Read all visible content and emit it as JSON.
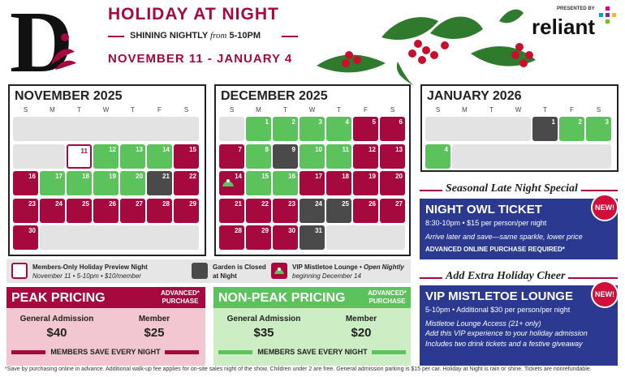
{
  "header": {
    "logo": "D",
    "title": "HOLIDAY AT NIGHT",
    "subtitle": {
      "before": "SHINING NIGHTLY",
      "italic": "from",
      "after": "5-10PM"
    },
    "dates": "NOVEMBER 11 - JANUARY 4",
    "presented_by": "PRESENTED BY",
    "sponsor": "reliant"
  },
  "weekdays": [
    "S",
    "M",
    "T",
    "W",
    "T",
    "F",
    "S"
  ],
  "months": [
    {
      "title": "NOVEMBER 2025",
      "weeks": [
        [
          null,
          null,
          null,
          null,
          null,
          null,
          null
        ],
        [
          null,
          null,
          {
            "day": 11,
            "fill": "#ffffff",
            "border": "#a6093d"
          },
          {
            "day": 12,
            "fill": "#5cc25c"
          },
          {
            "day": 13,
            "fill": "#5cc25c"
          },
          {
            "day": 14,
            "fill": "#5cc25c"
          },
          {
            "day": 15,
            "fill": "#a6093d"
          }
        ],
        [
          {
            "day": 16,
            "fill": "#a6093d"
          },
          {
            "day": 17,
            "fill": "#5cc25c"
          },
          {
            "day": 18,
            "fill": "#5cc25c"
          },
          {
            "day": 19,
            "fill": "#5cc25c"
          },
          {
            "day": 20,
            "fill": "#5cc25c"
          },
          {
            "day": 21,
            "fill": "#4a4a4a"
          },
          {
            "day": 22,
            "fill": "#a6093d"
          }
        ],
        [
          {
            "day": 23,
            "fill": "#a6093d"
          },
          {
            "day": 24,
            "fill": "#a6093d"
          },
          {
            "day": 25,
            "fill": "#a6093d"
          },
          {
            "day": 26,
            "fill": "#a6093d"
          },
          {
            "day": 27,
            "fill": "#a6093d"
          },
          {
            "day": 28,
            "fill": "#a6093d"
          },
          {
            "day": 29,
            "fill": "#a6093d"
          }
        ],
        [
          {
            "day": 30,
            "fill": "#a6093d"
          },
          null,
          null,
          null,
          null,
          null,
          null
        ]
      ]
    },
    {
      "title": "DECEMBER 2025",
      "weeks": [
        [
          null,
          {
            "day": 1,
            "fill": "#5cc25c"
          },
          {
            "day": 2,
            "fill": "#5cc25c"
          },
          {
            "day": 3,
            "fill": "#5cc25c"
          },
          {
            "day": 4,
            "fill": "#5cc25c"
          },
          {
            "day": 5,
            "fill": "#a6093d"
          },
          {
            "day": 6,
            "fill": "#a6093d"
          }
        ],
        [
          {
            "day": 7,
            "fill": "#a6093d"
          },
          {
            "day": 8,
            "fill": "#5cc25c"
          },
          {
            "day": 9,
            "fill": "#4a4a4a"
          },
          {
            "day": 10,
            "fill": "#5cc25c"
          },
          {
            "day": 11,
            "fill": "#5cc25c"
          },
          {
            "day": 12,
            "fill": "#a6093d"
          },
          {
            "day": 13,
            "fill": "#a6093d"
          }
        ],
        [
          {
            "day": 14,
            "fill": "#a6093d"
          },
          {
            "day": 15,
            "fill": "#5cc25c"
          },
          {
            "day": 16,
            "fill": "#5cc25c"
          },
          {
            "day": 17,
            "fill": "#a6093d"
          },
          {
            "day": 18,
            "fill": "#a6093d"
          },
          {
            "day": 19,
            "fill": "#a6093d"
          },
          {
            "day": 20,
            "fill": "#a6093d"
          }
        ],
        [
          {
            "day": 21,
            "fill": "#a6093d"
          },
          {
            "day": 22,
            "fill": "#a6093d"
          },
          {
            "day": 23,
            "fill": "#a6093d"
          },
          {
            "day": 24,
            "fill": "#4a4a4a"
          },
          {
            "day": 25,
            "fill": "#4a4a4a"
          },
          {
            "day": 26,
            "fill": "#a6093d"
          },
          {
            "day": 27,
            "fill": "#a6093d"
          }
        ],
        [
          {
            "day": 28,
            "fill": "#a6093d"
          },
          {
            "day": 29,
            "fill": "#a6093d"
          },
          {
            "day": 30,
            "fill": "#a6093d"
          },
          {
            "day": 31,
            "fill": "#4a4a4a"
          },
          null,
          null,
          null
        ]
      ]
    },
    {
      "title": "JANUARY 2026",
      "weeks": [
        [
          null,
          null,
          null,
          null,
          {
            "day": 1,
            "fill": "#4a4a4a"
          },
          {
            "day": 2,
            "fill": "#5cc25c"
          },
          {
            "day": 3,
            "fill": "#5cc25c"
          }
        ],
        [
          {
            "day": 4,
            "fill": "#5cc25c"
          },
          null,
          null,
          null,
          null,
          null,
          null
        ]
      ]
    }
  ],
  "legend": [
    {
      "title": "Members-Only Holiday Preview Night",
      "detail": "November 11 • 5-10pm • $10/member"
    },
    {
      "title": "Garden is Closed",
      "detail": "at Night"
    },
    {
      "title": "VIP Mistletoe Lounge •",
      "title_italic": "Open Nightly",
      "detail": "beginning December 14"
    }
  ],
  "pricing": [
    {
      "title": "PEAK PRICING",
      "badge": [
        "ADVANCED*",
        "PURCHASE"
      ],
      "columns": [
        {
          "label": "General Admission",
          "price": "$40"
        },
        {
          "label": "Member",
          "price": "$25"
        }
      ],
      "footer": "MEMBERS SAVE EVERY NIGHT"
    },
    {
      "title": "NON-PEAK PRICING",
      "badge": [
        "ADVANCED*",
        "PURCHASE"
      ],
      "columns": [
        {
          "label": "General Admission",
          "price": "$35"
        },
        {
          "label": "Member",
          "price": "$20"
        }
      ],
      "footer": "MEMBERS SAVE EVERY NIGHT"
    }
  ],
  "specials": [
    {
      "heading": "Seasonal Late Night Special",
      "title": "NIGHT OWL TICKET",
      "badge": "NEW!",
      "lines": [
        "8:30-10pm • $15 per person/per night",
        "Arrive later and save—same sparkle, lower price",
        "ADVANCED ONLINE PURCHASE REQUIRED*"
      ]
    },
    {
      "heading": "Add Extra Holiday Cheer",
      "title": "VIP MISTLETOE LOUNGE",
      "badge": "NEW!",
      "lines": [
        "5-10pm • Additional $30 per person/per night",
        "Mistletoe Lounge Access (21+ only)",
        "Add this VIP experience to your holiday admission",
        "Includes two drink tickets and a festive giveaway"
      ]
    }
  ],
  "footnote": "*Save by purchasing online in advance. Additional walk-up fee applies for on-site sales night of the show. Children under 2 are free. General admission parking is $15 per car. Holiday at Night is rain or shine. Tickets are nonrefundable."
}
